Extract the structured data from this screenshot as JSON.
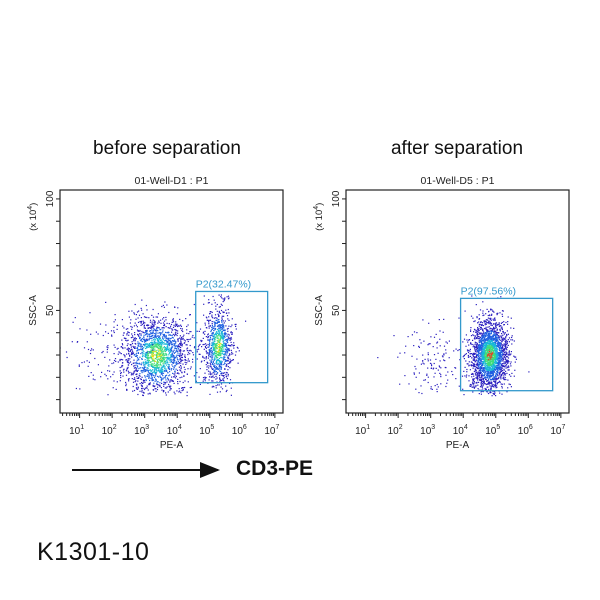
{
  "figure": {
    "headings": [
      "before separation",
      "after separation"
    ],
    "axis_marker_label": "CD3-PE",
    "catalog_number": "K1301-10"
  },
  "chart_data": [
    {
      "type": "scatter",
      "title": "01-Well-D1 : P1",
      "xlabel": "PE-A",
      "ylabel": "SSC-A",
      "y_unit": "(x 10^4)",
      "x_scale": "log",
      "xlim": [
        2.5,
        17782794
      ],
      "ylim": [
        4,
        104
      ],
      "x_tick_labels": [
        "10^1",
        "10^2",
        "10^3",
        "10^4",
        "10^5",
        "10^6",
        "10^7"
      ],
      "y_tick_labels": [
        "50",
        "100"
      ],
      "point_color_scale": [
        "#2a1fbf",
        "#1f5fe0",
        "#18b6d8",
        "#3fdc7a",
        "#e8e020",
        "#e83a20"
      ],
      "gate": {
        "name": "P2",
        "percent": "32.47%",
        "label": "P2(32.47%)",
        "x_range": [
          37000,
          6000000
        ],
        "y_range": [
          17.6,
          58.5
        ],
        "color": "#3399cc"
      },
      "populations": [
        {
          "log10_x_center": 3.35,
          "log10_x_sd": 0.5,
          "y_center": 30,
          "y_sd": 9,
          "events": 1700
        },
        {
          "log10_x_center": 5.25,
          "log10_x_sd": 0.22,
          "y_center": 34,
          "y_sd": 9,
          "events": 850
        },
        {
          "log10_x_center": 2.0,
          "log10_x_sd": 0.7,
          "y_center": 30,
          "y_sd": 10,
          "events": 120
        }
      ]
    },
    {
      "type": "scatter",
      "title": "01-Well-D5 : P1",
      "xlabel": "PE-A",
      "ylabel": "SSC-A",
      "y_unit": "(x 10^4)",
      "x_scale": "log",
      "xlim": [
        2.5,
        17782794
      ],
      "ylim": [
        4,
        104
      ],
      "x_tick_labels": [
        "10^1",
        "10^2",
        "10^3",
        "10^4",
        "10^5",
        "10^6",
        "10^7"
      ],
      "y_tick_labels": [
        "50",
        "100"
      ],
      "point_color_scale": [
        "#2a1fbf",
        "#1f5fe0",
        "#18b6d8",
        "#3fdc7a",
        "#e8e020",
        "#e83a20"
      ],
      "gate": {
        "name": "P2",
        "percent": "97.56%",
        "label": "P2(97.56%)",
        "x_range": [
          8300,
          5600000
        ],
        "y_range": [
          14,
          55.4
        ],
        "color": "#3399cc"
      },
      "populations": [
        {
          "log10_x_center": 4.8,
          "log10_x_sd": 0.28,
          "y_center": 30,
          "y_sd": 8,
          "events": 2200
        },
        {
          "log10_x_center": 3.2,
          "log10_x_sd": 0.6,
          "y_center": 27,
          "y_sd": 8,
          "events": 150
        }
      ]
    }
  ]
}
